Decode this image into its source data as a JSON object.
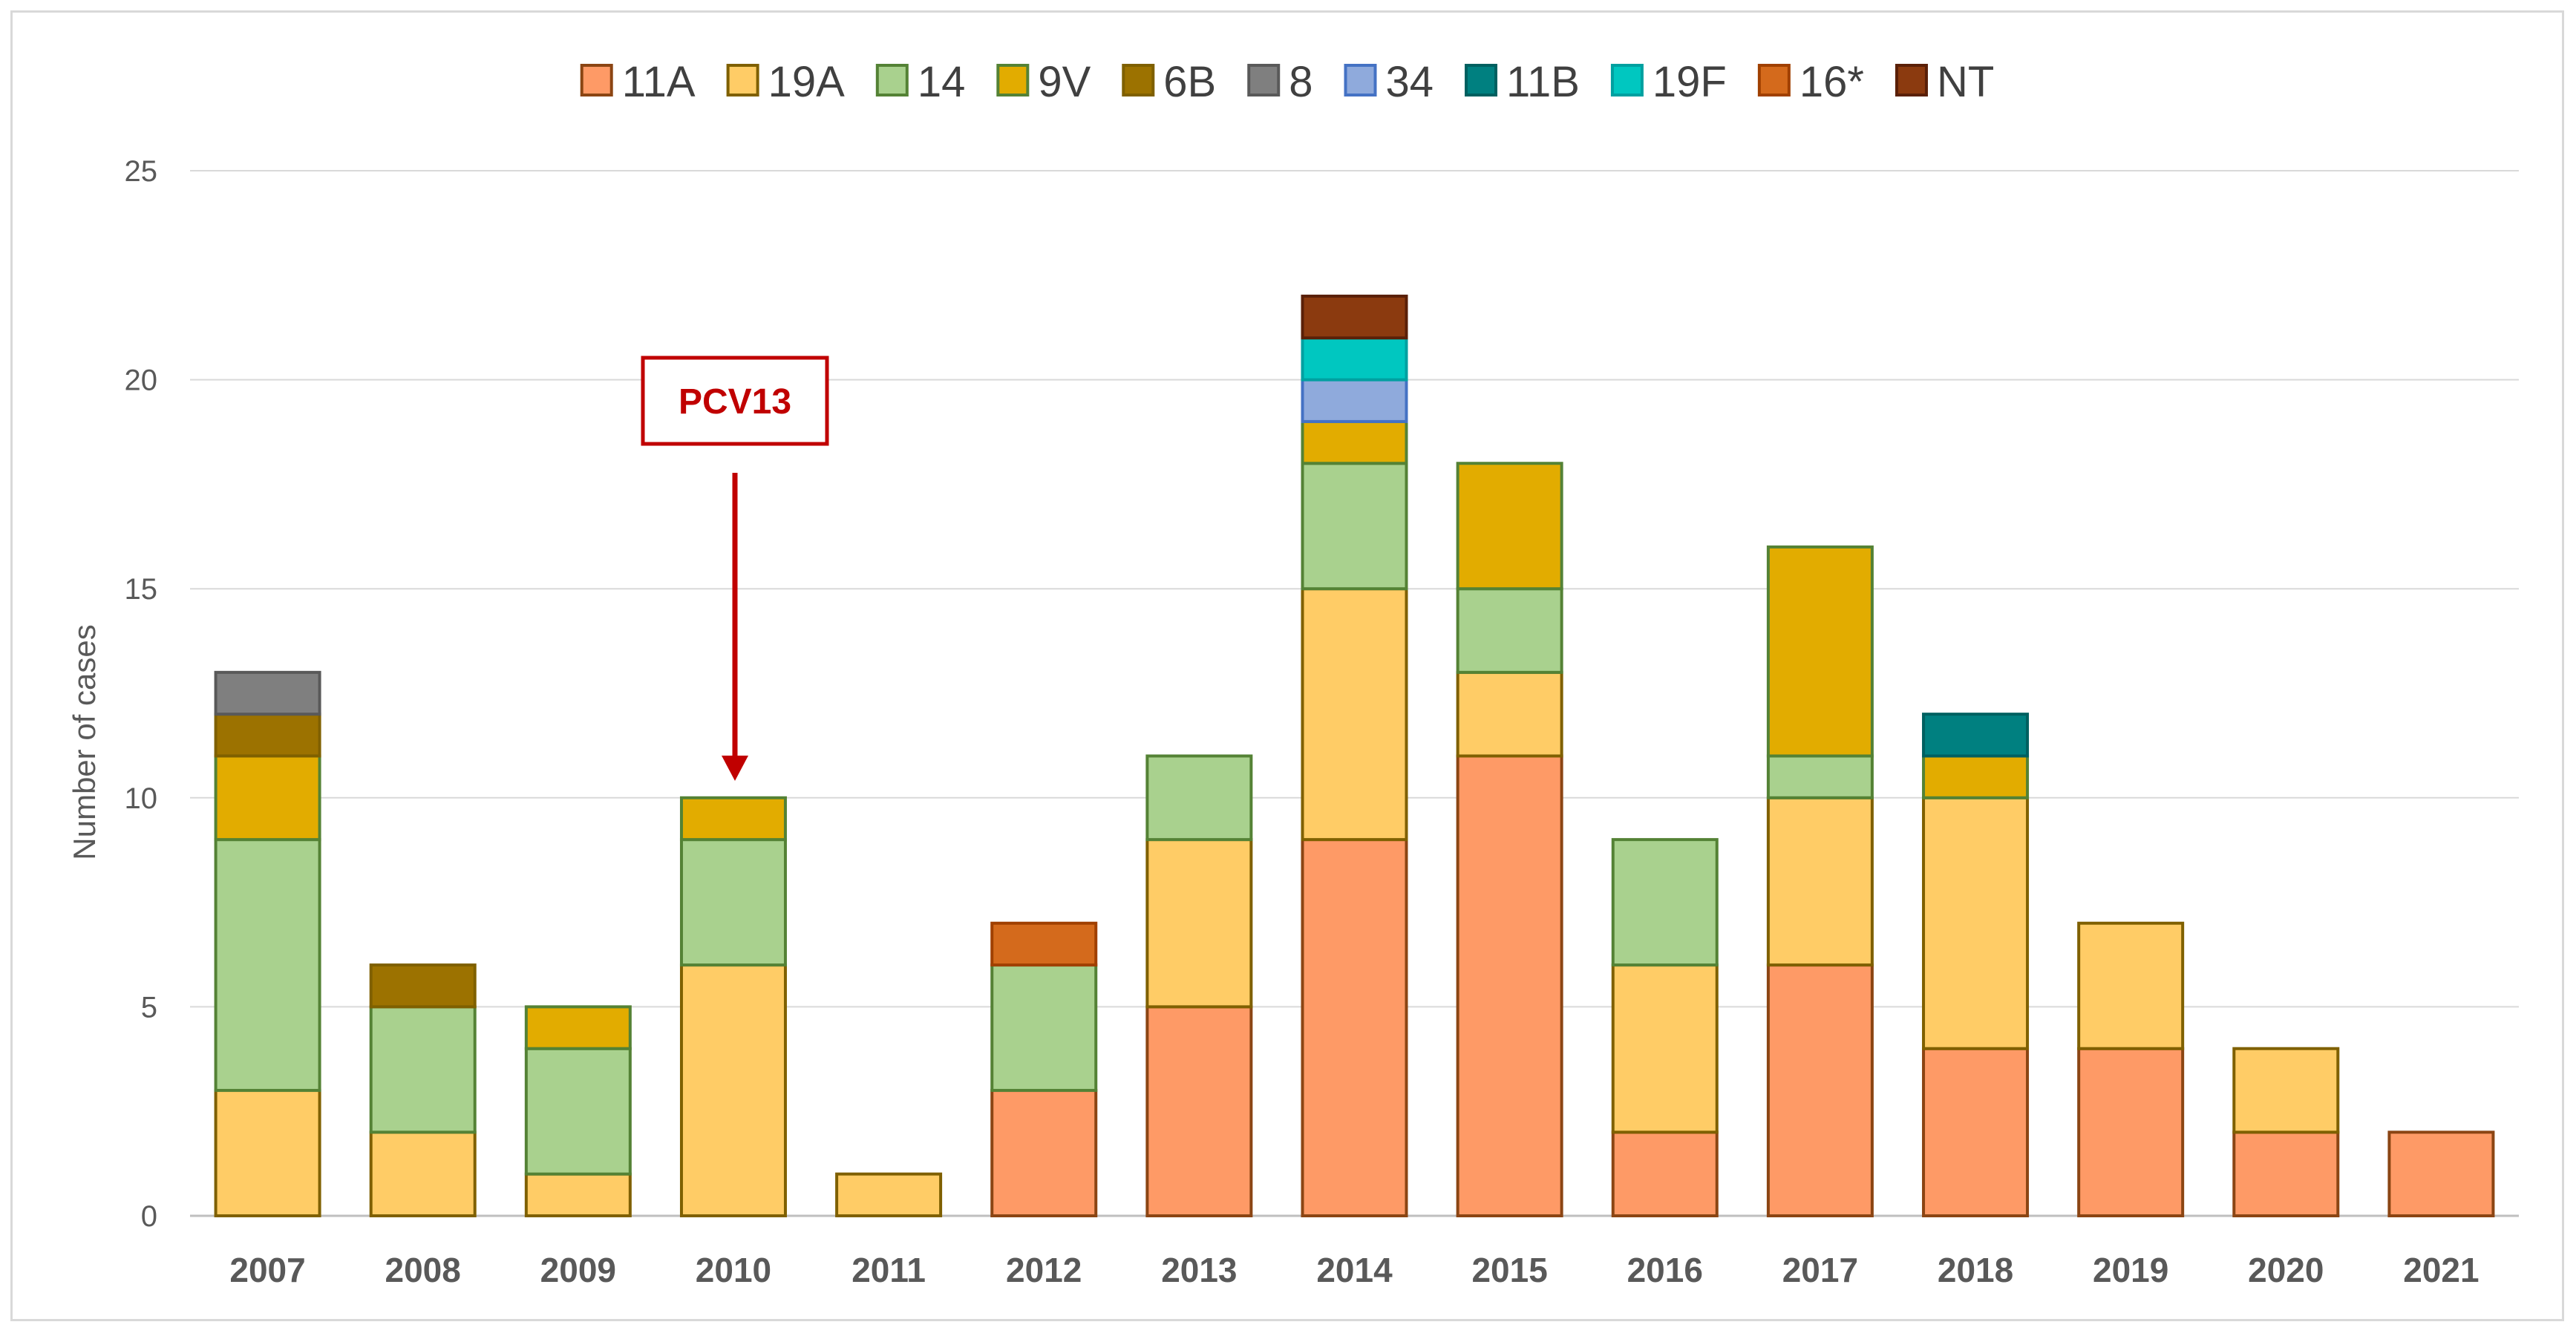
{
  "chart_data": {
    "type": "bar",
    "stacked": true,
    "title": "",
    "xlabel": "",
    "ylabel": "Number of cases",
    "ylim": [
      0,
      25
    ],
    "yticks": [
      0,
      5,
      10,
      15,
      20,
      25
    ],
    "grid": true,
    "legend_position": "top",
    "categories": [
      "2007",
      "2008",
      "2009",
      "2010",
      "2011",
      "2012",
      "2013",
      "2014",
      "2015",
      "2016",
      "2017",
      "2018",
      "2019",
      "2020",
      "2021"
    ],
    "series": [
      {
        "name": "11A",
        "color": "#fe9a66",
        "border": "#8b4513",
        "values": [
          0,
          0,
          0,
          0,
          0,
          3,
          5,
          9,
          11,
          2,
          6,
          4,
          4,
          2,
          2
        ]
      },
      {
        "name": "19A",
        "color": "#ffcc66",
        "border": "#7f6000",
        "values": [
          3,
          2,
          1,
          6,
          1,
          0,
          4,
          6,
          2,
          4,
          4,
          6,
          3,
          2,
          0
        ]
      },
      {
        "name": "14",
        "color": "#a9d18e",
        "border": "#548235",
        "values": [
          6,
          3,
          3,
          3,
          0,
          3,
          2,
          3,
          2,
          3,
          1,
          0,
          0,
          0,
          0
        ]
      },
      {
        "name": "9V",
        "color": "#e2ac00",
        "border": "#548235",
        "values": [
          2,
          0,
          1,
          1,
          0,
          0,
          0,
          1,
          3,
          0,
          5,
          1,
          0,
          0,
          0
        ]
      },
      {
        "name": "6B",
        "color": "#9c7200",
        "border": "#7f6000",
        "values": [
          1,
          1,
          0,
          0,
          0,
          0,
          0,
          0,
          0,
          0,
          0,
          0,
          0,
          0,
          0
        ]
      },
      {
        "name": "8",
        "color": "#7f7f7f",
        "border": "#595959",
        "values": [
          1,
          0,
          0,
          0,
          0,
          0,
          0,
          0,
          0,
          0,
          0,
          0,
          0,
          0,
          0
        ]
      },
      {
        "name": "34",
        "color": "#8faadc",
        "border": "#4472c4",
        "values": [
          0,
          0,
          0,
          0,
          0,
          0,
          0,
          1,
          0,
          0,
          0,
          0,
          0,
          0,
          0
        ]
      },
      {
        "name": "11B",
        "color": "#008080",
        "border": "#006060",
        "values": [
          0,
          0,
          0,
          0,
          0,
          0,
          0,
          0,
          0,
          0,
          0,
          1,
          0,
          0,
          0
        ]
      },
      {
        "name": "19F",
        "color": "#00c7c0",
        "border": "#00a0a0",
        "values": [
          0,
          0,
          0,
          0,
          0,
          0,
          0,
          1,
          0,
          0,
          0,
          0,
          0,
          0,
          0
        ]
      },
      {
        "name": "16*",
        "color": "#d46a1c",
        "border": "#a04000",
        "values": [
          0,
          0,
          0,
          0,
          0,
          1,
          0,
          0,
          0,
          0,
          0,
          0,
          0,
          0,
          0
        ]
      },
      {
        "name": "NT",
        "color": "#8b3a0f",
        "border": "#5a2008",
        "values": [
          0,
          0,
          0,
          0,
          0,
          0,
          0,
          1,
          0,
          0,
          0,
          0,
          0,
          0,
          0
        ]
      }
    ],
    "annotations": [
      {
        "text": "PCV13",
        "category": "2010",
        "type": "arrow",
        "color": "#c00000"
      }
    ]
  }
}
